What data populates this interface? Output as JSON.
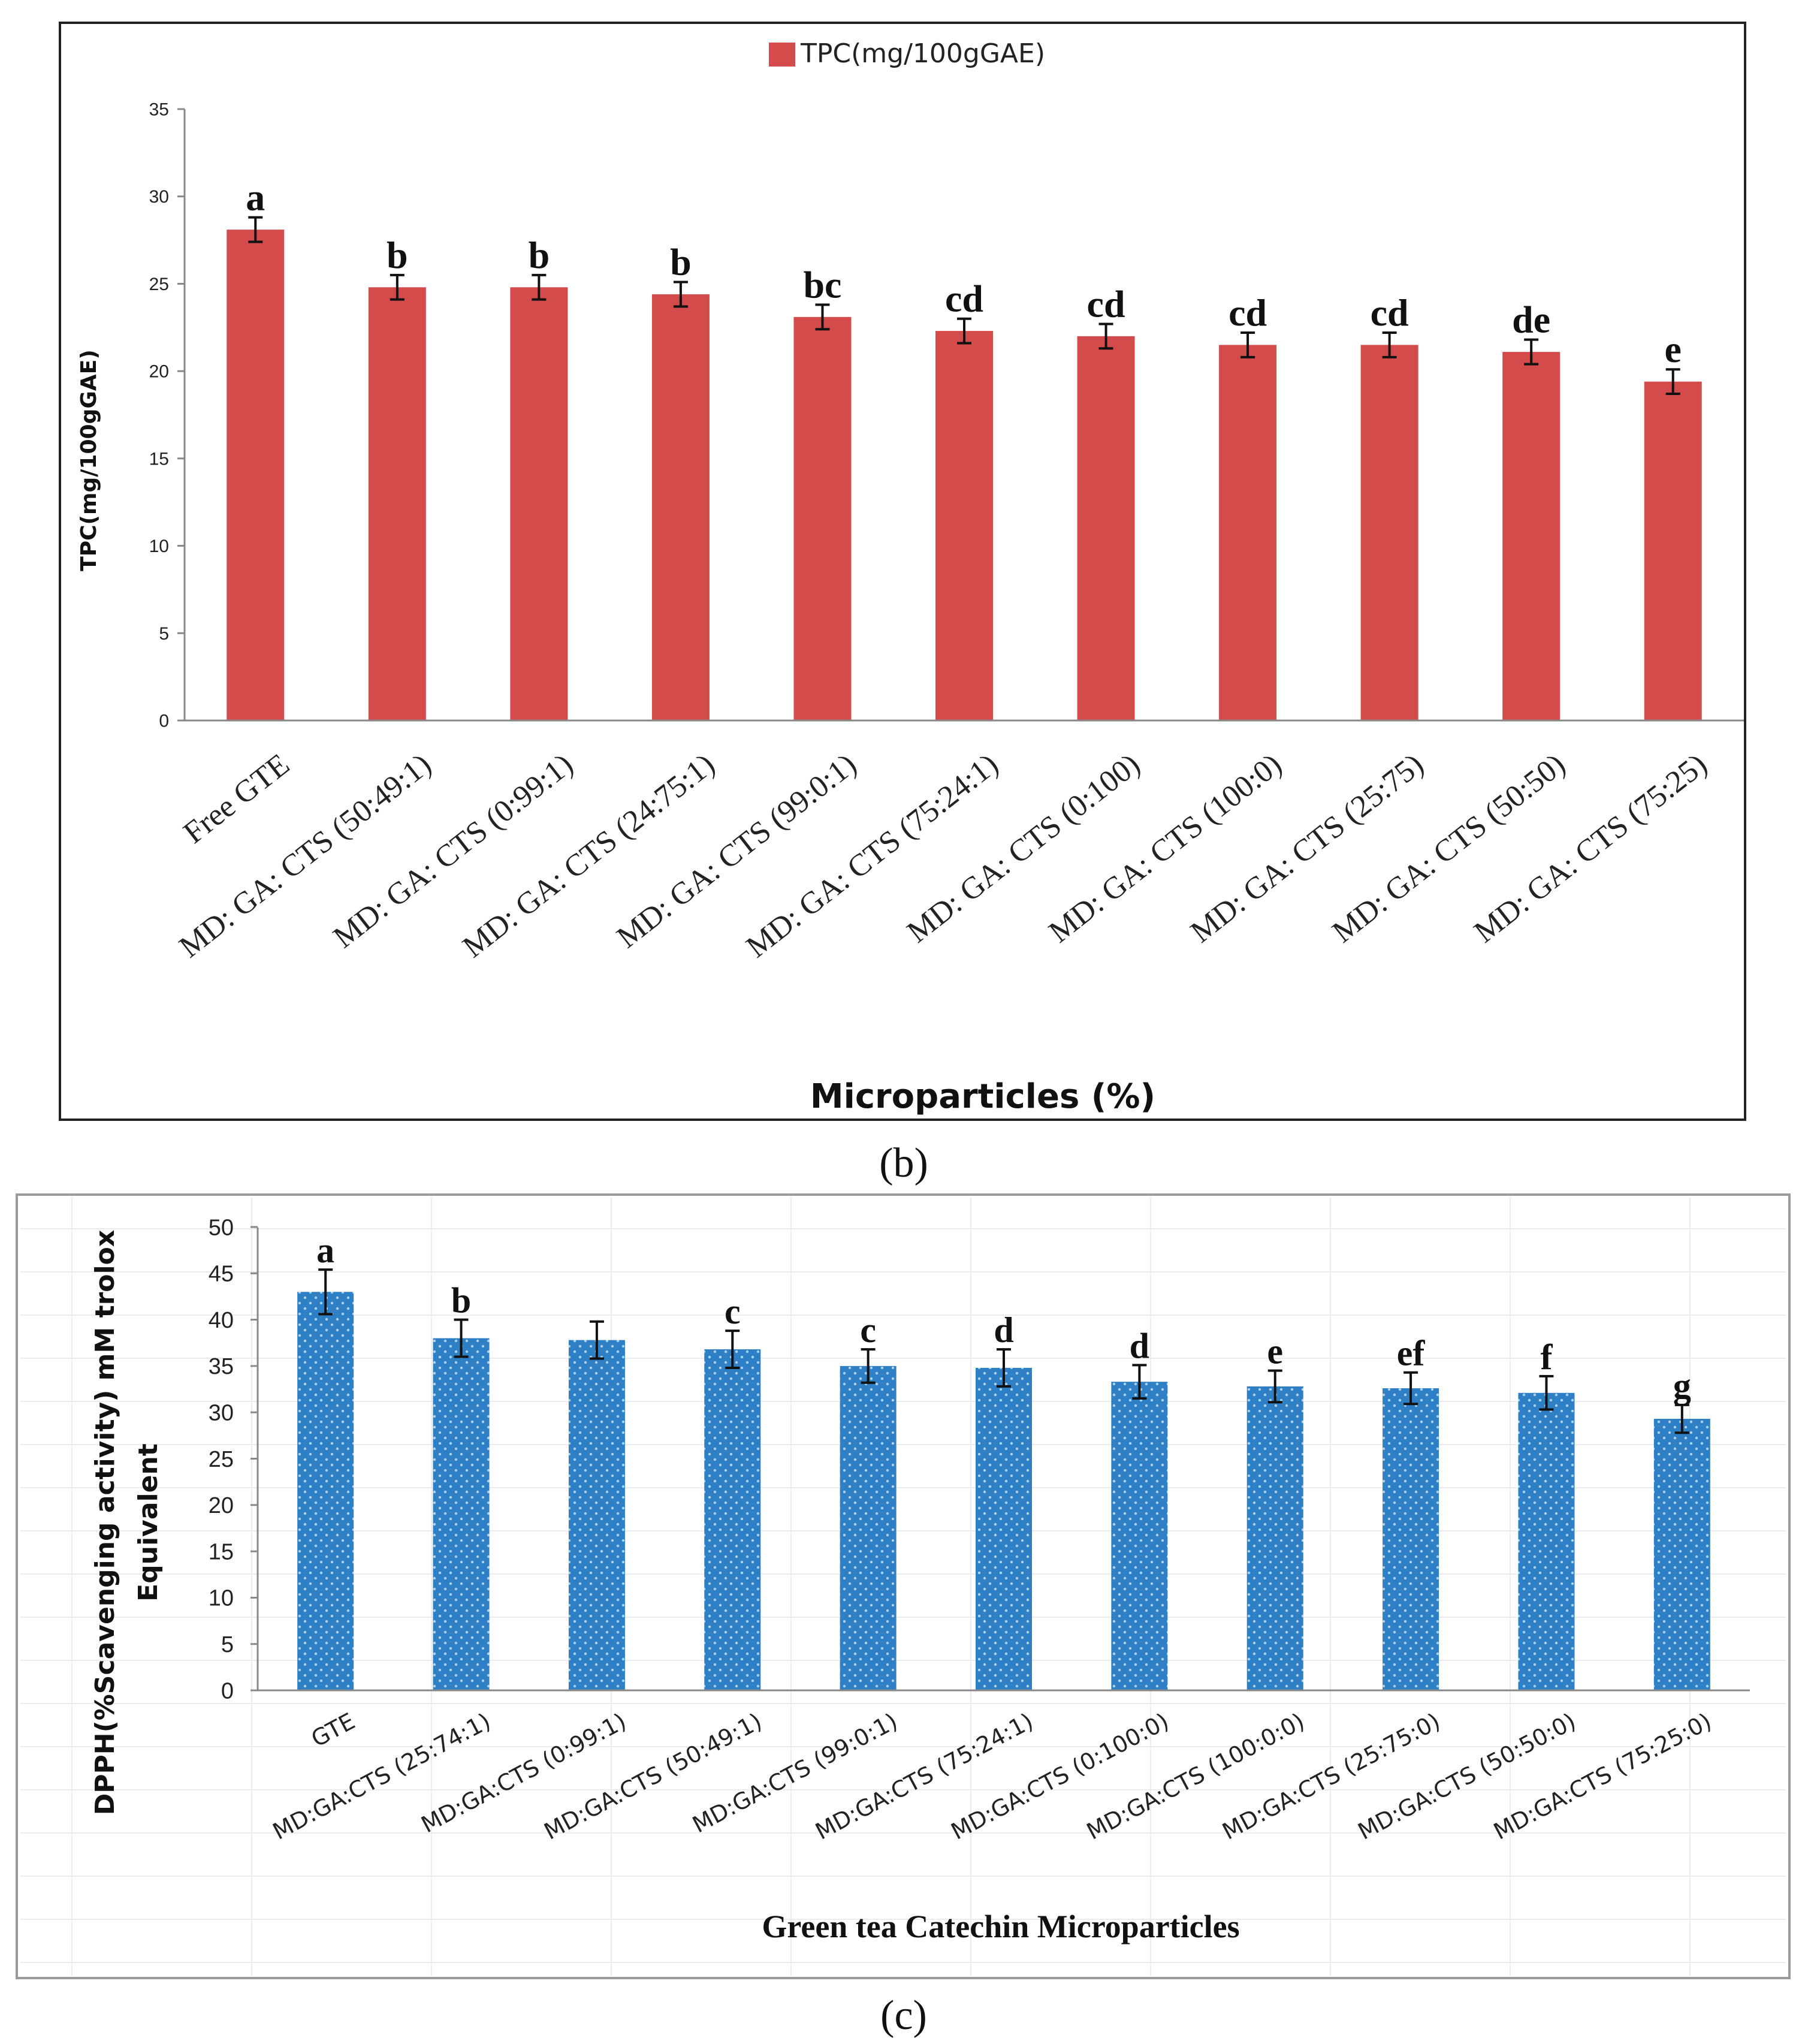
{
  "figure": {
    "panel_b_caption": "(b)",
    "panel_c_caption": "(c)"
  },
  "colors": {
    "tpc_bar": "#D34B4B",
    "dpph_bar": "#2E7FC4",
    "frame": "#222222",
    "axis": "#888888"
  },
  "chart_data": [
    {
      "type": "bar",
      "id": "tpc",
      "legend": "TPC(mg/100gGAE)",
      "ylabel": "TPC(mg/100gGAE)",
      "xlabel": "Microparticles (%)",
      "ylim": [
        0,
        35
      ],
      "yticks": [
        "0",
        "5",
        "10",
        "15",
        "20",
        "25",
        "30",
        "35"
      ],
      "categories": [
        "Free GTE",
        "MD: GA: CTS (50:49:1)",
        "MD: GA: CTS (0:99:1)",
        "MD: GA: CTS (24:75:1)",
        "MD: GA: CTS (99:0:1)",
        "MD: GA: CTS (75:24:1)",
        "MD: GA: CTS (0:100)",
        "MD: GA: CTS (100:0)",
        "MD: GA: CTS (25:75)",
        "MD: GA: CTS (50:50)",
        "MD: GA: CTS (75:25)"
      ],
      "values": [
        28.1,
        24.8,
        24.8,
        24.4,
        23.1,
        22.3,
        22.0,
        21.5,
        21.5,
        21.1,
        19.4
      ],
      "errors": [
        0.7,
        0.7,
        0.7,
        0.7,
        0.7,
        0.7,
        0.7,
        0.7,
        0.7,
        0.7,
        0.7
      ],
      "letters": [
        "a",
        "b",
        "b",
        "b",
        "bc",
        "cd",
        "cd",
        "cd",
        "cd",
        "de",
        "e"
      ]
    },
    {
      "type": "bar",
      "id": "dpph",
      "ylabel_line1": "DPPH(%Scavenging activity) mM trolox",
      "ylabel_line2": "Equivalent",
      "xlabel": "Green tea Catechin  Microparticles",
      "ylim": [
        0,
        50
      ],
      "yticks": [
        "0",
        "5",
        "10",
        "15",
        "20",
        "25",
        "30",
        "35",
        "40",
        "45",
        "50"
      ],
      "categories": [
        "GTE",
        "MD:GA:CTS (25:74:1)",
        "MD:GA:CTS (0:99:1)",
        "MD:GA:CTS (50:49:1)",
        "MD:GA:CTS (99:0:1)",
        "MD:GA:CTS (75:24:1)",
        "MD:GA:CTS (0:100:0)",
        "MD:GA:CTS (100:0:0)",
        "MD:GA:CTS (25:75:0)",
        "MD:GA:CTS (50:50:0)",
        "MD:GA:CTS (75:25:0)"
      ],
      "values": [
        43.0,
        38.0,
        37.8,
        36.8,
        35.0,
        34.8,
        33.3,
        32.8,
        32.6,
        32.1,
        29.3
      ],
      "errors": [
        2.4,
        2.0,
        2.0,
        2.0,
        1.8,
        2.0,
        1.8,
        1.7,
        1.7,
        1.8,
        1.5
      ],
      "letters": [
        "a",
        "b",
        "",
        "c",
        "c",
        "d",
        "d",
        "e",
        "ef",
        "f",
        "g"
      ]
    }
  ]
}
